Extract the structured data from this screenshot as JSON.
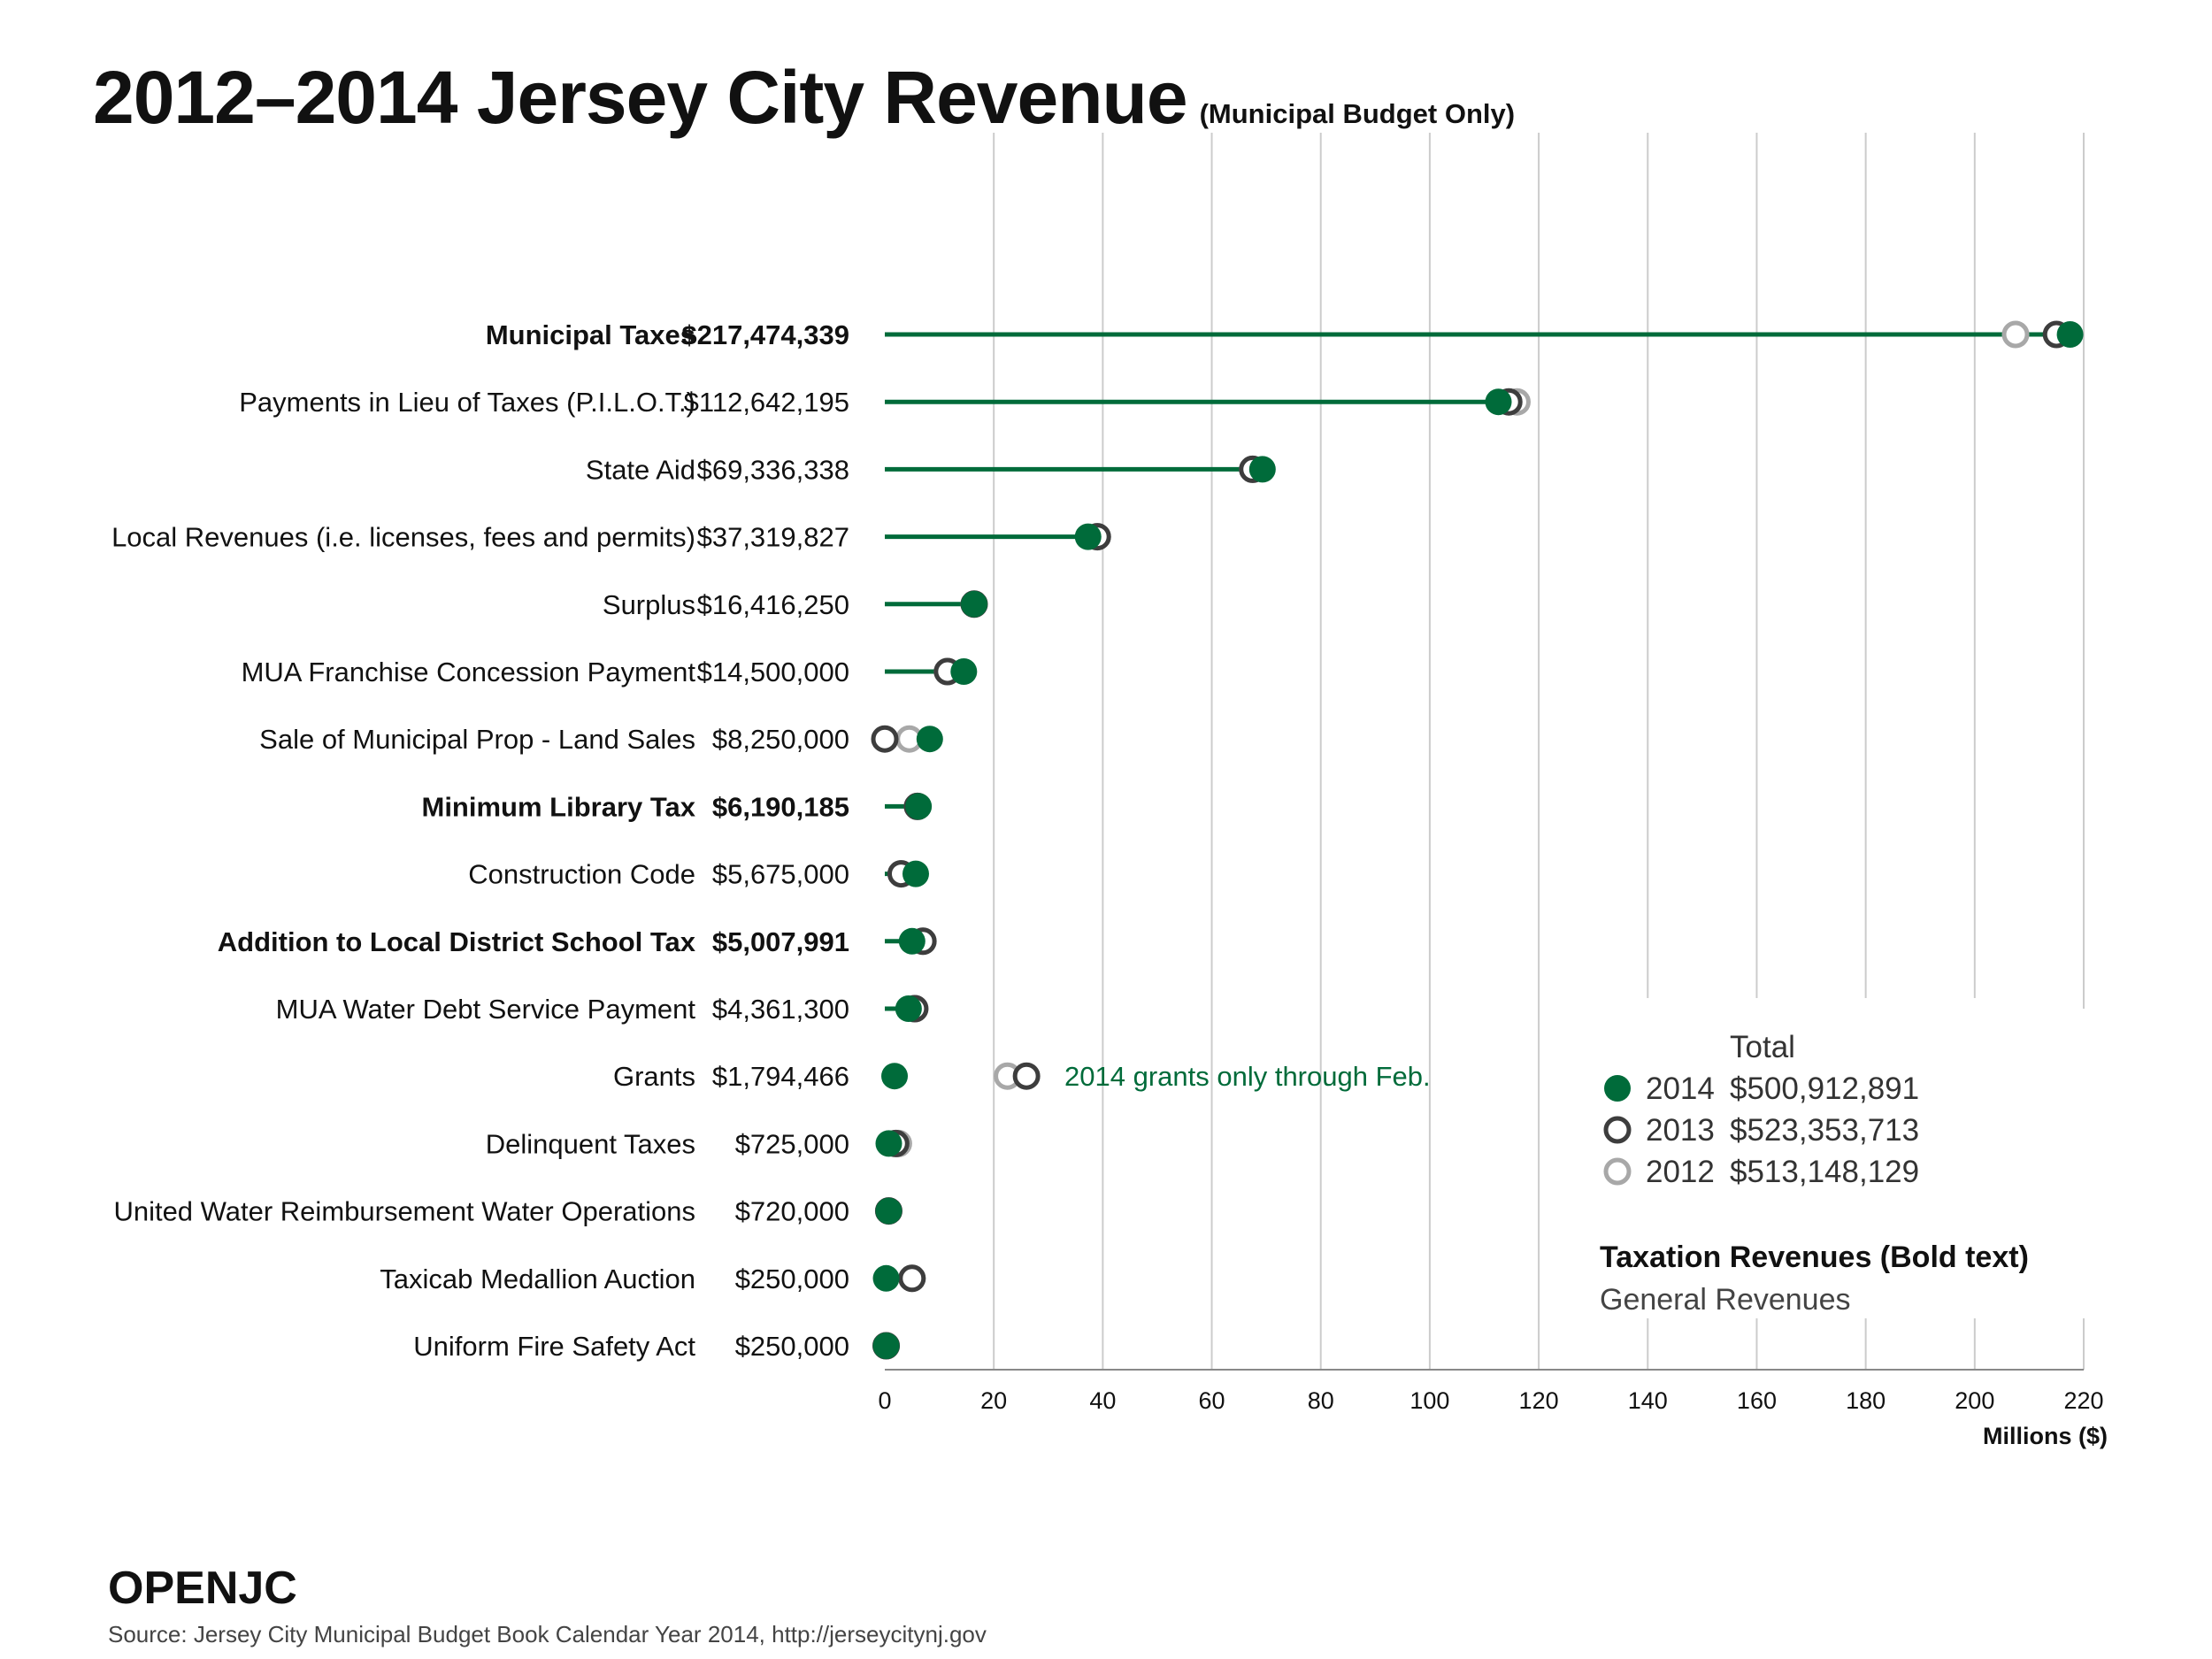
{
  "title": "2012–2014 Jersey City Revenue",
  "subtitle": "(Municipal Budget Only)",
  "brand": "OPENJC",
  "source": "Source: Jersey City Municipal Budget Book Calendar Year 2014, http://jerseycitynj.gov",
  "colors": {
    "y2014": "#006b3a",
    "y2013": "#3d3d3d",
    "y2012": "#a8a8a8",
    "grid": "#cccccc",
    "annotation": "#006b3a"
  },
  "chart_data": {
    "type": "dot-plot",
    "xlabel": "Millions ($)",
    "xlim": [
      0,
      220
    ],
    "xticks": [
      0,
      20,
      40,
      60,
      80,
      100,
      120,
      140,
      160,
      180,
      200,
      220
    ],
    "grid": true,
    "legend_position": "bottom-right",
    "legend_header": "Total",
    "legend": [
      {
        "year": "2014",
        "total": "$500,912,891"
      },
      {
        "year": "2013",
        "total": "$523,353,713"
      },
      {
        "year": "2012",
        "total": "$513,148,129"
      }
    ],
    "style_note_bold": "Taxation Revenues (Bold text)",
    "style_note_regular": "General Revenues",
    "annotation": "2014 grants only through Feb.",
    "categories": [
      {
        "name": "Municipal Taxes",
        "amount": "$217,474,339",
        "bold": true,
        "v2014": 217.5,
        "v2013": 215.0,
        "v2012": 207.5
      },
      {
        "name": "Payments in Lieu of Taxes (P.I.L.O.T.)",
        "amount": "$112,642,195",
        "bold": false,
        "v2014": 112.6,
        "v2013": 114.5,
        "v2012": 116.0
      },
      {
        "name": "State Aid",
        "amount": "$69,336,338",
        "bold": false,
        "v2014": 69.3,
        "v2013": 67.5,
        "v2012": 67.5
      },
      {
        "name": "Local Revenues (i.e. licenses, fees and permits)",
        "amount": "$37,319,827",
        "bold": false,
        "v2014": 37.3,
        "v2013": 39.0,
        "v2012": 39.0
      },
      {
        "name": "Surplus",
        "amount": "$16,416,250",
        "bold": false,
        "v2014": 16.4,
        "v2013": 16.4,
        "v2012": 16.4
      },
      {
        "name": "MUA Franchise Concession Payment",
        "amount": "$14,500,000",
        "bold": false,
        "v2014": 14.5,
        "v2013": 11.5,
        "v2012": 11.5
      },
      {
        "name": "Sale of Municipal Prop - Land Sales",
        "amount": "$8,250,000",
        "bold": false,
        "v2014": 8.25,
        "v2013": 0.0,
        "v2012": 4.5
      },
      {
        "name": "Minimum Library Tax",
        "amount": "$6,190,185",
        "bold": true,
        "v2014": 6.19,
        "v2013": 6.0,
        "v2012": 6.0
      },
      {
        "name": "Construction Code",
        "amount": "$5,675,000",
        "bold": false,
        "v2014": 5.68,
        "v2013": 3.0,
        "v2012": 3.0
      },
      {
        "name": "Addition to Local District School Tax",
        "amount": "$5,007,991",
        "bold": true,
        "v2014": 5.0,
        "v2013": 7.0,
        "v2012": 7.0
      },
      {
        "name": "MUA Water Debt Service Payment",
        "amount": "$4,361,300",
        "bold": false,
        "v2014": 4.36,
        "v2013": 5.5,
        "v2012": 5.5
      },
      {
        "name": "Grants",
        "amount": "$1,794,466",
        "bold": false,
        "v2014": 1.79,
        "v2013": 26.0,
        "v2012": 22.5
      },
      {
        "name": "Delinquent Taxes",
        "amount": "$725,000",
        "bold": false,
        "v2014": 0.73,
        "v2013": 2.0,
        "v2012": 2.5
      },
      {
        "name": "United Water Reimbursement Water Operations",
        "amount": "$720,000",
        "bold": false,
        "v2014": 0.72,
        "v2013": 0.72,
        "v2012": 0.72
      },
      {
        "name": "Taxicab Medallion Auction",
        "amount": "$250,000",
        "bold": false,
        "v2014": 0.25,
        "v2013": 5.0,
        "v2012": 5.0
      },
      {
        "name": "Uniform Fire Safety Act",
        "amount": "$250,000",
        "bold": false,
        "v2014": 0.25,
        "v2013": 0.25,
        "v2012": 0.25
      }
    ]
  }
}
